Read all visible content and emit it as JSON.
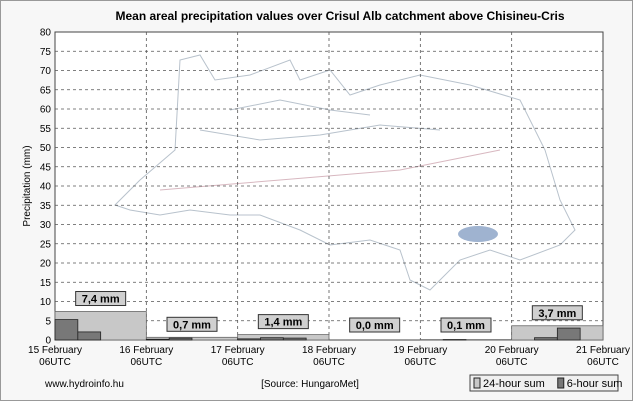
{
  "chart_data": {
    "type": "bar",
    "title": "Mean areal precipitation values over Crisul Alb catchment above Chisineu-Cris",
    "y_label": "Precipitation (mm)",
    "ylim": [
      0,
      80
    ],
    "yticks": [
      0,
      5,
      10,
      15,
      20,
      25,
      30,
      35,
      40,
      45,
      50,
      55,
      60,
      65,
      70,
      75,
      80
    ],
    "xlim": [
      0,
      144
    ],
    "xticks": [
      {
        "value": 0,
        "label": "15 February",
        "sublabel": "06UTC"
      },
      {
        "value": 24,
        "label": "16 February",
        "sublabel": "06UTC"
      },
      {
        "value": 48,
        "label": "17 February",
        "sublabel": "06UTC"
      },
      {
        "value": 72,
        "label": "18 February",
        "sublabel": "06UTC"
      },
      {
        "value": 96,
        "label": "19 February",
        "sublabel": "06UTC"
      },
      {
        "value": 120,
        "label": "20 February",
        "sublabel": "06UTC"
      },
      {
        "value": 144,
        "label": "21 February",
        "sublabel": "06UTC"
      }
    ],
    "grid": true,
    "series": [
      {
        "name": "24-hour sum",
        "color": "#c8c8c8",
        "bins": [
          0,
          24,
          48,
          72,
          96,
          120,
          144
        ],
        "values": [
          7.4,
          0.7,
          1.4,
          0.0,
          0.1,
          3.7
        ],
        "value_labels": [
          "7,4 mm",
          "0,7 mm",
          "1,4 mm",
          "0,0 mm",
          "0,1 mm",
          "3,7 mm"
        ]
      },
      {
        "name": "6-hour sum",
        "color": "#787878",
        "bins": [
          0,
          6,
          12,
          18,
          24,
          30,
          36,
          42,
          48,
          54,
          60,
          66,
          72,
          78,
          84,
          90,
          96,
          102,
          108,
          114,
          120,
          126,
          132,
          138,
          144
        ],
        "values": [
          5.3,
          2.1,
          0,
          0,
          0.2,
          0.5,
          0,
          0,
          0.3,
          0.6,
          0.5,
          0,
          0,
          0,
          0,
          0,
          0,
          0.1,
          0,
          0,
          0,
          0.6,
          3.1,
          0
        ]
      }
    ],
    "legend": "bottom-right",
    "footer_left": "www.hydroinfo.hu",
    "source": "[Source: HungaroMet]"
  }
}
